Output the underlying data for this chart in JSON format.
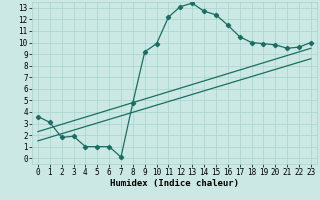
{
  "xlabel": "Humidex (Indice chaleur)",
  "bg_color": "#cce8e4",
  "line_color": "#1a6e63",
  "xlim": [
    -0.5,
    23.5
  ],
  "ylim": [
    -0.5,
    13.5
  ],
  "xticks": [
    0,
    1,
    2,
    3,
    4,
    5,
    6,
    7,
    8,
    9,
    10,
    11,
    12,
    13,
    14,
    15,
    16,
    17,
    18,
    19,
    20,
    21,
    22,
    23
  ],
  "yticks": [
    0,
    1,
    2,
    3,
    4,
    5,
    6,
    7,
    8,
    9,
    10,
    11,
    12,
    13
  ],
  "curve_x": [
    0,
    1,
    2,
    3,
    4,
    5,
    6,
    7,
    8,
    9,
    10,
    11,
    12,
    13,
    14,
    15,
    16,
    17,
    18,
    19,
    20,
    21,
    22,
    23
  ],
  "curve_y": [
    3.6,
    3.1,
    1.8,
    1.9,
    1.0,
    1.0,
    1.0,
    0.1,
    4.8,
    9.2,
    9.9,
    12.2,
    13.1,
    13.4,
    12.7,
    12.4,
    11.5,
    10.5,
    10.0,
    9.9,
    9.8,
    9.5,
    9.6,
    10.0
  ],
  "line1_x": [
    0,
    23
  ],
  "line1_y": [
    2.3,
    9.5
  ],
  "line2_x": [
    0,
    23
  ],
  "line2_y": [
    1.5,
    8.6
  ],
  "grid_color": "#a8d4ce",
  "marker": "D",
  "markersize": 2.2,
  "linewidth": 0.9,
  "tick_fontsize": 5.5,
  "xlabel_fontsize": 6.5
}
